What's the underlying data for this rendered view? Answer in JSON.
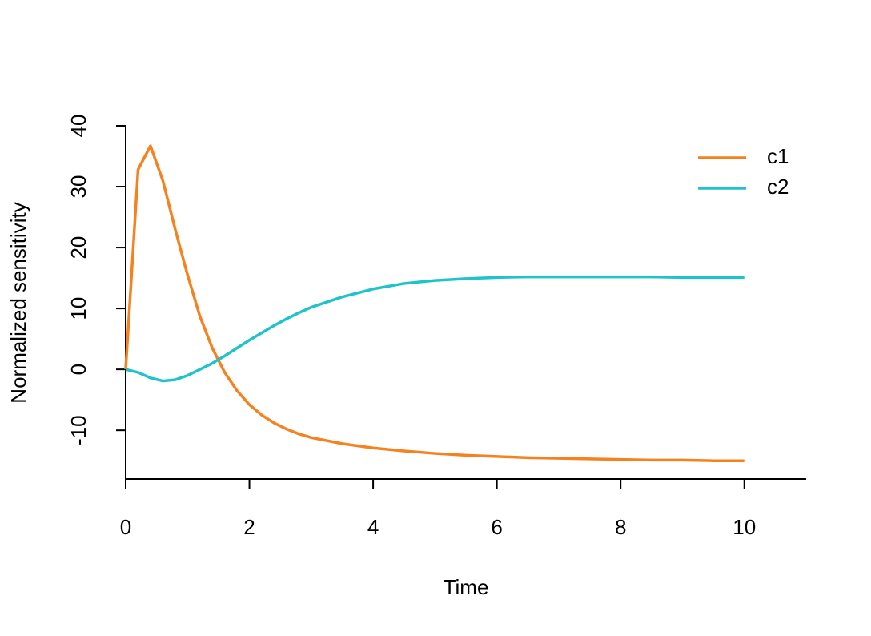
{
  "chart_data": {
    "type": "line",
    "x_label": "Time",
    "y_label": "Normalized sensitivity",
    "x": [
      0,
      0.2,
      0.4,
      0.6,
      0.8,
      1.0,
      1.2,
      1.4,
      1.6,
      1.8,
      2.0,
      2.2,
      2.4,
      2.6,
      2.8,
      3.0,
      3.5,
      4,
      4.5,
      5,
      5.5,
      6,
      6.5,
      7,
      7.5,
      8,
      8.5,
      9,
      9.5,
      10
    ],
    "series": [
      {
        "name": "c1",
        "color": "#f5821f",
        "values": [
          0,
          32.8,
          36.7,
          31,
          23,
          15.5,
          8.7,
          3.5,
          -0.5,
          -3.5,
          -5.8,
          -7.5,
          -8.8,
          -9.8,
          -10.6,
          -11.2,
          -12.2,
          -12.9,
          -13.4,
          -13.8,
          -14.1,
          -14.3,
          -14.5,
          -14.6,
          -14.7,
          -14.8,
          -14.9,
          -14.9,
          -15.0,
          -15.0
        ]
      },
      {
        "name": "c2",
        "color": "#1fc3c9",
        "values": [
          0,
          -0.5,
          -1.4,
          -1.9,
          -1.7,
          -1.0,
          0.0,
          1.0,
          2.2,
          3.5,
          4.8,
          6.0,
          7.2,
          8.3,
          9.3,
          10.2,
          11.9,
          13.2,
          14.1,
          14.6,
          14.9,
          15.1,
          15.2,
          15.2,
          15.2,
          15.2,
          15.2,
          15.1,
          15.1,
          15.1
        ]
      }
    ],
    "xlim": [
      0,
      11
    ],
    "xticks": [
      0,
      2,
      4,
      6,
      8,
      10
    ],
    "ylim": [
      -18,
      40
    ],
    "yticks": [
      -10,
      0,
      10,
      20,
      30,
      40
    ],
    "legend": "top-right"
  }
}
